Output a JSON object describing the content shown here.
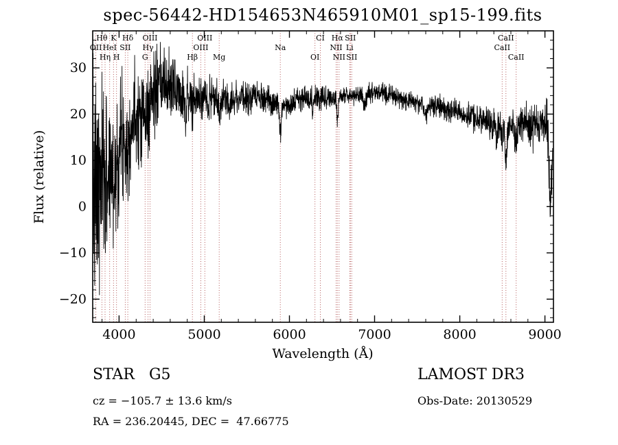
{
  "title": "spec-56442-HD154653N465910M01_sp15-199.fits",
  "footer": {
    "class_label": "STAR   G5",
    "survey": "LAMOST DR3",
    "cz": "cz = −105.7 ± 13.6 km/s",
    "obs_date": "Obs-Date: 20130529",
    "radec": "RA = 236.20445, DEC =  47.66775"
  },
  "chart_data": {
    "type": "line",
    "title": "spec-56442-HD154653N465910M01_sp15-199.fits",
    "xlabel": "Wavelength (Å)",
    "ylabel": "Flux (relative)",
    "xlim": [
      3690,
      9100
    ],
    "ylim": [
      -25,
      38
    ],
    "x_ticks": [
      4000,
      5000,
      6000,
      7000,
      8000,
      9000
    ],
    "y_ticks": [
      -20,
      -10,
      0,
      10,
      20,
      30
    ],
    "x_minor_step": 200,
    "y_minor_step": 2,
    "grid": false,
    "legend": "none",
    "line_color": "#000000",
    "marker_line_color": "#aa4444",
    "line_markers": [
      {
        "wavelength": 3798,
        "label": "Hθ",
        "row": 1
      },
      {
        "wavelength": 3934,
        "label": "K",
        "row": 1
      },
      {
        "wavelength": 4102,
        "label": "Hδ",
        "row": 1
      },
      {
        "wavelength": 4363,
        "label": "OIII",
        "row": 1
      },
      {
        "wavelength": 5007,
        "label": "OIII",
        "row": 1
      },
      {
        "wavelength": 6363,
        "label": "CI",
        "row": 1
      },
      {
        "wavelength": 6563,
        "label": "Hα",
        "row": 1
      },
      {
        "wavelength": 6716,
        "label": "SII",
        "row": 1
      },
      {
        "wavelength": 8542,
        "label": "CaII",
        "row": 1
      },
      {
        "wavelength": 3727,
        "label": "OII",
        "row": 2
      },
      {
        "wavelength": 3889,
        "label": "HeI",
        "row": 2
      },
      {
        "wavelength": 4072,
        "label": "SII",
        "row": 2
      },
      {
        "wavelength": 4340,
        "label": "Hγ",
        "row": 2
      },
      {
        "wavelength": 4959,
        "label": "OIII",
        "row": 2
      },
      {
        "wavelength": 5893,
        "label": "Na",
        "row": 2
      },
      {
        "wavelength": 6548,
        "label": "NII",
        "row": 2
      },
      {
        "wavelength": 6708,
        "label": "Li",
        "row": 2
      },
      {
        "wavelength": 8498,
        "label": "CaII",
        "row": 2
      },
      {
        "wavelength": 3835,
        "label": "Hη",
        "row": 3
      },
      {
        "wavelength": 3970,
        "label": "H",
        "row": 3
      },
      {
        "wavelength": 4305,
        "label": "G",
        "row": 3
      },
      {
        "wavelength": 4861,
        "label": "Hβ",
        "row": 3
      },
      {
        "wavelength": 5175,
        "label": "Mg",
        "row": 3
      },
      {
        "wavelength": 6300,
        "label": "OI",
        "row": 3
      },
      {
        "wavelength": 6583,
        "label": "NII",
        "row": 3
      },
      {
        "wavelength": 6731,
        "label": "SII",
        "row": 3
      },
      {
        "wavelength": 8662,
        "label": "CaII",
        "row": 3
      }
    ],
    "spectrum": {
      "x_start": 3695,
      "x_end": 9090,
      "n_points": 2400,
      "seed": 7,
      "continuum": [
        [
          3695,
          2
        ],
        [
          3750,
          3
        ],
        [
          3800,
          5
        ],
        [
          3850,
          6.5
        ],
        [
          3900,
          8
        ],
        [
          3950,
          10
        ],
        [
          4000,
          13
        ],
        [
          4050,
          15
        ],
        [
          4100,
          16
        ],
        [
          4150,
          18
        ],
        [
          4200,
          20
        ],
        [
          4300,
          22
        ],
        [
          4400,
          24
        ],
        [
          4500,
          26
        ],
        [
          4600,
          26
        ],
        [
          4700,
          25
        ],
        [
          4800,
          24
        ],
        [
          4900,
          23
        ],
        [
          5000,
          24
        ],
        [
          5100,
          23.5
        ],
        [
          5250,
          23
        ],
        [
          5400,
          23.5
        ],
        [
          5600,
          23.5
        ],
        [
          5800,
          22.5
        ],
        [
          5950,
          22
        ],
        [
          6100,
          23
        ],
        [
          6300,
          23.5
        ],
        [
          6450,
          23.5
        ],
        [
          6650,
          24
        ],
        [
          6900,
          24.5
        ],
        [
          7100,
          24.5
        ],
        [
          7300,
          23.5
        ],
        [
          7500,
          22.5
        ],
        [
          7700,
          22
        ],
        [
          7900,
          21
        ],
        [
          8100,
          19.5
        ],
        [
          8300,
          18.5
        ],
        [
          8500,
          17.5
        ],
        [
          8650,
          17
        ],
        [
          8750,
          18.5
        ],
        [
          8850,
          16.5
        ],
        [
          8950,
          18.5
        ],
        [
          9050,
          17
        ],
        [
          9090,
          12
        ]
      ],
      "noise": [
        [
          3695,
          13
        ],
        [
          3750,
          12
        ],
        [
          3800,
          10
        ],
        [
          3900,
          8.5
        ],
        [
          4000,
          7
        ],
        [
          4100,
          6
        ],
        [
          4200,
          5.5
        ],
        [
          4350,
          5
        ],
        [
          4500,
          4
        ],
        [
          4700,
          3
        ],
        [
          4900,
          2.4
        ],
        [
          5100,
          2
        ],
        [
          5400,
          1.7
        ],
        [
          5800,
          1.4
        ],
        [
          6200,
          1.2
        ],
        [
          6800,
          1.0
        ],
        [
          7400,
          1.0
        ],
        [
          7900,
          1.2
        ],
        [
          8300,
          1.5
        ],
        [
          8600,
          1.9
        ],
        [
          8900,
          2.2
        ],
        [
          9090,
          3
        ]
      ],
      "absorption": [
        [
          3933,
          6,
          8
        ],
        [
          3968,
          5,
          8
        ],
        [
          4101,
          5,
          8
        ],
        [
          4305,
          4,
          12
        ],
        [
          4340,
          4,
          8
        ],
        [
          4782,
          6,
          5
        ],
        [
          4861,
          4,
          8
        ],
        [
          5048,
          4,
          5
        ],
        [
          5175,
          3.5,
          12
        ],
        [
          5893,
          6.5,
          10
        ],
        [
          6272,
          3.5,
          4
        ],
        [
          6563,
          5.5,
          8
        ],
        [
          6880,
          3,
          12
        ],
        [
          7600,
          2.5,
          15
        ],
        [
          8430,
          6,
          6
        ],
        [
          8498,
          4,
          8
        ],
        [
          8542,
          8,
          9
        ],
        [
          8662,
          5,
          8
        ],
        [
          9060,
          16,
          12
        ]
      ]
    }
  }
}
